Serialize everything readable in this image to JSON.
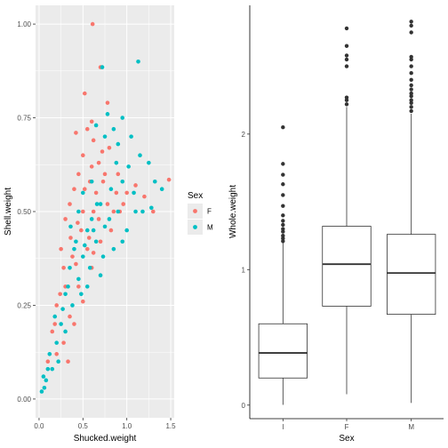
{
  "colors": {
    "F": "#F8766D",
    "M": "#00BFC4",
    "panel": "#EBEBEB",
    "grid": "#FFFFFF",
    "outlier": "#333333"
  },
  "chart_data": [
    {
      "type": "scatter",
      "xlabel": "Shucked.weight",
      "ylabel": "Shell.weight",
      "xlim": [
        -0.04,
        1.54
      ],
      "ylim": [
        -0.05,
        1.05
      ],
      "xticks": [
        {
          "v": 0.0,
          "label": "0.0"
        },
        {
          "v": 0.5,
          "label": "0.5"
        },
        {
          "v": 1.0,
          "label": "1.0"
        },
        {
          "v": 1.5,
          "label": "1.5"
        }
      ],
      "yticks": [
        {
          "v": 0.0,
          "label": "0.00"
        },
        {
          "v": 0.25,
          "label": "0.25"
        },
        {
          "v": 0.5,
          "label": "0.50"
        },
        {
          "v": 0.75,
          "label": "0.75"
        },
        {
          "v": 1.0,
          "label": "1.00"
        }
      ],
      "grid": true,
      "legend": {
        "title": "Sex",
        "position": "right",
        "entries": [
          "F",
          "M"
        ]
      },
      "series": [
        {
          "name": "F",
          "points": [
            [
              0.61,
              1.0
            ],
            [
              0.7,
              0.885
            ],
            [
              0.52,
              0.815
            ],
            [
              0.78,
              0.79
            ],
            [
              0.6,
              0.74
            ],
            [
              0.55,
              0.72
            ],
            [
              0.42,
              0.71
            ],
            [
              0.62,
              0.69
            ],
            [
              0.72,
              0.66
            ],
            [
              0.8,
              0.67
            ],
            [
              0.5,
              0.65
            ],
            [
              0.6,
              0.62
            ],
            [
              0.68,
              0.63
            ],
            [
              0.45,
              0.6
            ],
            [
              0.58,
              0.58
            ],
            [
              0.4,
              0.56
            ],
            [
              0.75,
              0.6
            ],
            [
              0.88,
              0.55
            ],
            [
              1.0,
              0.55
            ],
            [
              1.1,
              0.57
            ],
            [
              1.2,
              0.54
            ],
            [
              0.92,
              0.5
            ],
            [
              1.3,
              0.5
            ],
            [
              1.48,
              0.585
            ],
            [
              0.35,
              0.52
            ],
            [
              0.3,
              0.48
            ],
            [
              0.5,
              0.5
            ],
            [
              0.62,
              0.5
            ],
            [
              0.25,
              0.4
            ],
            [
              0.38,
              0.38
            ],
            [
              0.55,
              0.4
            ],
            [
              0.7,
              0.42
            ],
            [
              0.82,
              0.45
            ],
            [
              0.3,
              0.3
            ],
            [
              0.45,
              0.3
            ],
            [
              0.6,
              0.35
            ],
            [
              0.2,
              0.25
            ],
            [
              0.35,
              0.22
            ],
            [
              0.5,
              0.26
            ],
            [
              0.15,
              0.18
            ],
            [
              0.28,
              0.15
            ],
            [
              0.4,
              0.2
            ],
            [
              0.1,
              0.1
            ],
            [
              0.2,
              0.12
            ],
            [
              0.33,
              0.1
            ],
            [
              0.68,
              0.48
            ],
            [
              0.78,
              0.52
            ],
            [
              0.48,
              0.45
            ],
            [
              0.28,
              0.35
            ],
            [
              0.9,
              0.6
            ],
            [
              0.65,
              0.55
            ],
            [
              0.52,
              0.56
            ],
            [
              0.73,
              0.58
            ],
            [
              0.36,
              0.43
            ],
            [
              0.44,
              0.47
            ],
            [
              0.57,
              0.43
            ],
            [
              0.62,
              0.39
            ],
            [
              0.18,
              0.2
            ],
            [
              0.24,
              0.28
            ],
            [
              0.42,
              0.36
            ],
            [
              0.85,
              0.5
            ],
            [
              0.96,
              0.52
            ]
          ]
        },
        {
          "name": "M",
          "points": [
            [
              0.72,
              0.885
            ],
            [
              1.13,
              0.9
            ],
            [
              0.95,
              0.75
            ],
            [
              0.78,
              0.76
            ],
            [
              0.85,
              0.72
            ],
            [
              0.65,
              0.73
            ],
            [
              0.75,
              0.7
            ],
            [
              0.9,
              0.68
            ],
            [
              1.05,
              0.7
            ],
            [
              1.02,
              0.62
            ],
            [
              0.88,
              0.63
            ],
            [
              1.15,
              0.65
            ],
            [
              1.25,
              0.63
            ],
            [
              1.32,
              0.58
            ],
            [
              0.95,
              0.58
            ],
            [
              1.08,
              0.55
            ],
            [
              1.4,
              0.56
            ],
            [
              0.82,
              0.56
            ],
            [
              1.28,
              0.51
            ],
            [
              0.7,
              0.52
            ],
            [
              0.9,
              0.5
            ],
            [
              1.1,
              0.5
            ],
            [
              1.18,
              0.5
            ],
            [
              0.6,
              0.48
            ],
            [
              0.75,
              0.46
            ],
            [
              0.45,
              0.5
            ],
            [
              0.55,
              0.45
            ],
            [
              0.65,
              0.42
            ],
            [
              0.5,
              0.38
            ],
            [
              0.4,
              0.4
            ],
            [
              0.35,
              0.35
            ],
            [
              0.45,
              0.32
            ],
            [
              0.55,
              0.3
            ],
            [
              0.7,
              0.33
            ],
            [
              0.3,
              0.28
            ],
            [
              0.25,
              0.2
            ],
            [
              0.38,
              0.25
            ],
            [
              0.2,
              0.15
            ],
            [
              0.3,
              0.18
            ],
            [
              0.12,
              0.12
            ],
            [
              0.08,
              0.05
            ],
            [
              0.03,
              0.02
            ],
            [
              0.05,
              0.06
            ],
            [
              0.15,
              0.08
            ],
            [
              0.22,
              0.1
            ],
            [
              1.0,
              0.45
            ],
            [
              0.85,
              0.4
            ],
            [
              0.6,
              0.58
            ],
            [
              0.5,
              0.55
            ],
            [
              0.95,
              0.42
            ],
            [
              0.42,
              0.42
            ],
            [
              0.58,
              0.35
            ],
            [
              0.33,
              0.3
            ],
            [
              0.18,
              0.22
            ],
            [
              0.27,
              0.24
            ],
            [
              0.48,
              0.28
            ],
            [
              0.62,
              0.45
            ],
            [
              0.73,
              0.38
            ],
            [
              0.8,
              0.48
            ],
            [
              0.36,
              0.46
            ],
            [
              0.52,
              0.41
            ],
            [
              0.66,
              0.52
            ],
            [
              0.1,
              0.08
            ],
            [
              0.06,
              0.03
            ]
          ]
        }
      ]
    },
    {
      "type": "box",
      "xlabel": "Sex",
      "ylabel": "Whole.weight",
      "categories": [
        "I",
        "F",
        "M"
      ],
      "ylim": [
        -0.1,
        2.95
      ],
      "yticks": [
        {
          "v": 0,
          "label": "0"
        },
        {
          "v": 1,
          "label": "1"
        },
        {
          "v": 2,
          "label": "2"
        }
      ],
      "boxes": [
        {
          "category": "I",
          "min": 0.002,
          "q1": 0.2,
          "median": 0.385,
          "q3": 0.6,
          "max": 1.2,
          "outliers": [
            1.21,
            1.23,
            1.25,
            1.28,
            1.3,
            1.33,
            1.36,
            1.4,
            1.47,
            1.55,
            1.63,
            1.7,
            1.78,
            2.05
          ]
        },
        {
          "category": "F",
          "min": 0.08,
          "q1": 0.73,
          "median": 1.04,
          "q3": 1.32,
          "max": 2.2,
          "outliers": [
            2.22,
            2.25,
            2.27,
            2.5,
            2.55,
            2.58,
            2.65,
            2.78
          ]
        },
        {
          "category": "M",
          "min": 0.016,
          "q1": 0.67,
          "median": 0.975,
          "q3": 1.26,
          "max": 2.15,
          "outliers": [
            2.17,
            2.2,
            2.23,
            2.25,
            2.28,
            2.3,
            2.33,
            2.36,
            2.4,
            2.45,
            2.5,
            2.55,
            2.57,
            2.75,
            2.8,
            2.83
          ]
        }
      ]
    }
  ]
}
